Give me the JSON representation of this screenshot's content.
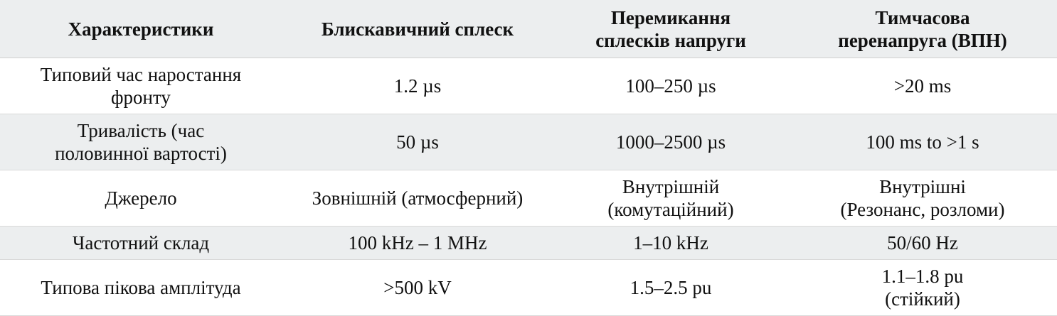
{
  "table": {
    "headers": [
      [
        "Характеристики"
      ],
      [
        "Блискавичний сплеск"
      ],
      [
        "Перемикання",
        "сплесків напруги"
      ],
      [
        "Тимчасова",
        "перенапруга (ВПН)"
      ]
    ],
    "rows": [
      {
        "characteristic": [
          "Типовий час наростання",
          "фронту"
        ],
        "lightning": [
          "1.2 µs"
        ],
        "switching": [
          "100–250 µs"
        ],
        "temporary": [
          ">20 ms"
        ]
      },
      {
        "characteristic": [
          "Тривалість (час",
          "половинної вартості)"
        ],
        "lightning": [
          "50 µs"
        ],
        "switching": [
          "1000–2500 µs"
        ],
        "temporary": [
          "100 ms to >1 s"
        ]
      },
      {
        "characteristic": [
          "Джерело"
        ],
        "lightning": [
          "Зовнішній (атмосферний)"
        ],
        "switching": [
          "Внутрішній",
          "(комутаційний)"
        ],
        "temporary": [
          "Внутрішні",
          "(Резонанс, розломи)"
        ]
      },
      {
        "characteristic": [
          "Частотний склад"
        ],
        "lightning": [
          "100 kHz – 1 MHz"
        ],
        "switching": [
          "1–10 kHz"
        ],
        "temporary": [
          "50/60 Hz"
        ]
      },
      {
        "characteristic": [
          "Типова пікова амплітуда"
        ],
        "lightning": [
          ">500 kV"
        ],
        "switching": [
          "1.5–2.5 pu"
        ],
        "temporary": [
          "1.1–1.8 pu",
          "(стійкий)"
        ]
      }
    ]
  }
}
